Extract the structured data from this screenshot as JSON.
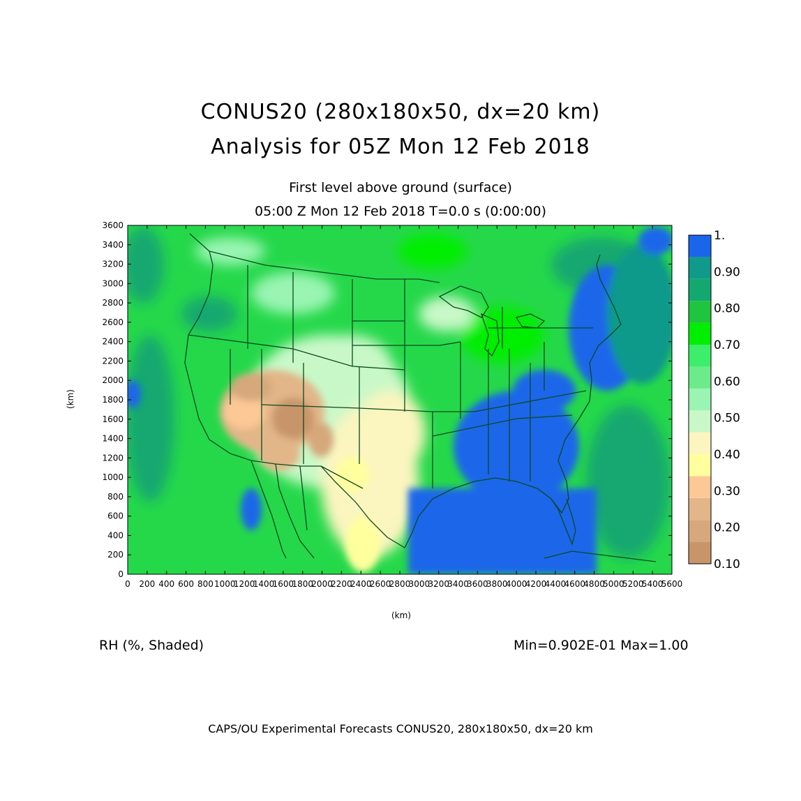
{
  "title_line1": "CONUS20 (280x180x50, dx=20 km)",
  "title_line2": "Analysis for 05Z Mon 12 Feb 2018",
  "subtitle_level": "First level above ground (surface)",
  "subtitle_time": "05:00 Z Mon 12 Feb 2018    T=0.0 s (0:00:00)",
  "x_axis_label": "(km)",
  "y_axis_label": "(km)",
  "x_ticks": [
    "0",
    "200",
    "400",
    "600",
    "800",
    "1000",
    "1200",
    "1400",
    "1600",
    "1800",
    "2000",
    "2200",
    "2400",
    "2600",
    "2800",
    "3000",
    "3200",
    "3400",
    "3600",
    "3800",
    "4000",
    "4200",
    "4400",
    "4600",
    "4800",
    "5000",
    "5200",
    "5400",
    "5600"
  ],
  "y_ticks": [
    "0",
    "200",
    "400",
    "600",
    "800",
    "1000",
    "1200",
    "1400",
    "1600",
    "1800",
    "2000",
    "2200",
    "2400",
    "2600",
    "2800",
    "3000",
    "3200",
    "3400",
    "3600"
  ],
  "x_range": [
    0,
    5600
  ],
  "y_range": [
    0,
    3600
  ],
  "variable_label": "RH (%, Shaded)",
  "min_max": "Min=0.902E-01 Max=1.00",
  "footer": "CAPS/OU Experimental Forecasts  CONUS20, 280x180x50, dx=20 km",
  "colorbar": {
    "labels": [
      "1.",
      "0.90",
      "0.80",
      "0.70",
      "0.60",
      "0.50",
      "0.40",
      "0.30",
      "0.20",
      "0.10"
    ],
    "colors": [
      "#c8956a",
      "#d6a87c",
      "#e2b688",
      "#fcc896",
      "#ffff9e",
      "#fbf5bf",
      "#c9f8c8",
      "#9af5b2",
      "#6beb8a",
      "#3cee6a",
      "#00ee00",
      "#1fc43f",
      "#13a870",
      "#0f9a8a",
      "#1a66ea"
    ]
  },
  "map": {
    "region": "Continental United States",
    "background_color": "#2cdc50",
    "border_color": "#0a4a20"
  }
}
